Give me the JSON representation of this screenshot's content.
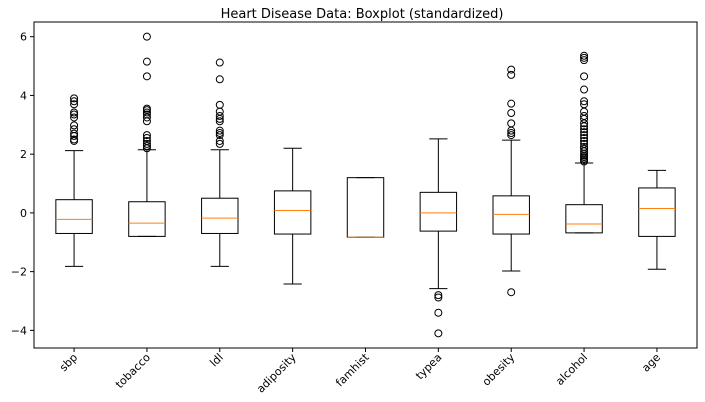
{
  "chart_data": {
    "type": "boxplot",
    "title": "Heart Disease Data: Boxplot (standardized)",
    "xlabel": "",
    "ylabel": "",
    "ylim": [
      -4.6,
      6.5
    ],
    "yticks": [
      -4,
      -2,
      0,
      2,
      4,
      6
    ],
    "grid": false,
    "colors": {
      "box": "#000000",
      "median": "#ff7f0e",
      "background": "#ffffff"
    },
    "categories": [
      "sbp",
      "tobacco",
      "ldl",
      "adiposity",
      "famhist",
      "typea",
      "obesity",
      "alcohol",
      "age"
    ],
    "boxes": [
      {
        "name": "sbp",
        "whislo": -1.82,
        "q1": -0.7,
        "med": -0.22,
        "q3": 0.45,
        "whishi": 2.12,
        "fliers": [
          2.45,
          2.5,
          2.62,
          2.7,
          2.85,
          2.98,
          3.25,
          3.35,
          3.42,
          3.7,
          3.8,
          3.9
        ]
      },
      {
        "name": "tobacco",
        "whislo": -0.8,
        "q1": -0.8,
        "med": -0.35,
        "q3": 0.38,
        "whishi": 2.15,
        "fliers": [
          2.2,
          2.28,
          2.35,
          2.45,
          2.55,
          2.65,
          3.12,
          3.25,
          3.35,
          3.42,
          3.5,
          3.55,
          4.65,
          5.15,
          6.0
        ]
      },
      {
        "name": "ldl",
        "whislo": -1.82,
        "q1": -0.7,
        "med": -0.18,
        "q3": 0.5,
        "whishi": 2.15,
        "fliers": [
          2.35,
          2.45,
          2.65,
          2.72,
          2.8,
          3.12,
          3.2,
          3.3,
          3.45,
          3.68,
          4.55,
          5.12
        ]
      },
      {
        "name": "adiposity",
        "whislo": -2.42,
        "q1": -0.72,
        "med": 0.08,
        "q3": 0.75,
        "whishi": 2.2,
        "fliers": []
      },
      {
        "name": "famhist",
        "whislo": -0.83,
        "q1": -0.83,
        "med": -0.83,
        "q3": 1.2,
        "whishi": 1.2,
        "fliers": []
      },
      {
        "name": "typea",
        "whislo": -2.58,
        "q1": -0.62,
        "med": 0.0,
        "q3": 0.7,
        "whishi": 2.52,
        "fliers": [
          -2.8,
          -2.88,
          -3.4,
          -4.1
        ]
      },
      {
        "name": "obesity",
        "whislo": -1.98,
        "q1": -0.72,
        "med": -0.05,
        "q3": 0.58,
        "whishi": 2.48,
        "fliers": [
          2.65,
          2.72,
          2.8,
          3.05,
          3.4,
          3.72,
          4.7,
          4.88,
          -2.7
        ]
      },
      {
        "name": "alcohol",
        "whislo": -0.68,
        "q1": -0.68,
        "med": -0.38,
        "q3": 0.28,
        "whishi": 1.7,
        "fliers": [
          1.75,
          1.8,
          1.85,
          1.9,
          1.95,
          2.02,
          2.1,
          2.18,
          2.25,
          2.35,
          2.45,
          2.55,
          2.65,
          2.75,
          2.85,
          2.95,
          3.05,
          3.2,
          3.3,
          3.45,
          3.7,
          3.8,
          4.2,
          4.65,
          5.2,
          5.28,
          5.35
        ]
      },
      {
        "name": "age",
        "whislo": -1.92,
        "q1": -0.8,
        "med": 0.15,
        "q3": 0.85,
        "whishi": 1.45,
        "fliers": []
      }
    ]
  }
}
